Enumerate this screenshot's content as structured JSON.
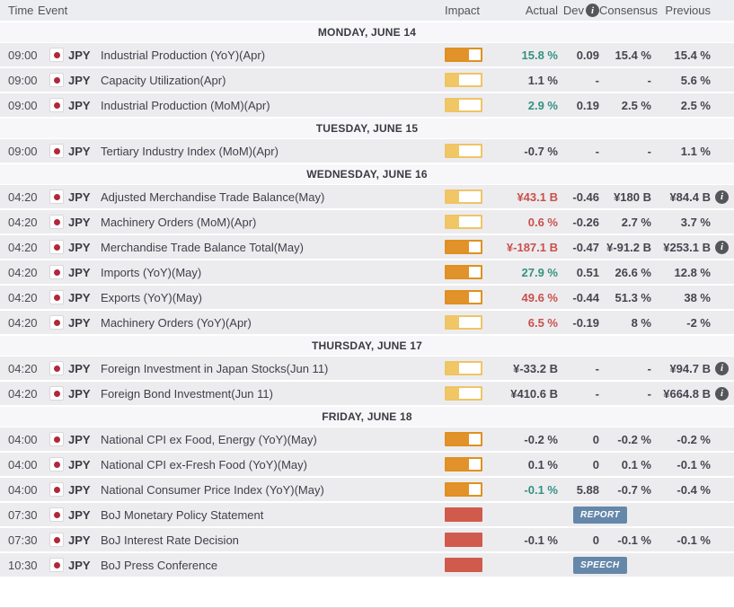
{
  "header": {
    "columns": {
      "time": "Time",
      "event": "Event",
      "impact": "Impact",
      "actual": "Actual",
      "dev": "Dev",
      "consensus": "Consensus",
      "previous": "Previous"
    },
    "dev_info_glyph": "i"
  },
  "icons": {
    "info_glyph": "i",
    "flag": "japan-flag"
  },
  "colors": {
    "impact_low": "#f1c766",
    "impact_medium": "#e2922a",
    "impact_high": "#d05b4c",
    "value_positive": "#359180",
    "value_negative": "#c9504b",
    "value_neutral": "#45454e",
    "badge_bg": "#6588aa",
    "row_bg": "#ececef",
    "day_band_bg": "#f7f7f9",
    "header_bg": "#ebedf0"
  },
  "sections": [
    {
      "date": "MONDAY, JUNE 14",
      "rows": [
        {
          "time": "09:00",
          "currency": "JPY",
          "event": "Industrial Production (YoY)(Apr)",
          "impact": "medium",
          "actual": "15.8 %",
          "actual_color": "positive",
          "dev": "0.09",
          "consensus": "15.4 %",
          "previous": "15.4 %",
          "prev_info": false
        },
        {
          "time": "09:00",
          "currency": "JPY",
          "event": "Capacity Utilization(Apr)",
          "impact": "low",
          "actual": "1.1 %",
          "actual_color": "neutral",
          "dev": "-",
          "consensus": "-",
          "previous": "5.6 %",
          "prev_info": false
        },
        {
          "time": "09:00",
          "currency": "JPY",
          "event": "Industrial Production (MoM)(Apr)",
          "impact": "low",
          "actual": "2.9 %",
          "actual_color": "positive",
          "dev": "0.19",
          "consensus": "2.5 %",
          "previous": "2.5 %",
          "prev_info": false
        }
      ]
    },
    {
      "date": "TUESDAY, JUNE 15",
      "rows": [
        {
          "time": "09:00",
          "currency": "JPY",
          "event": "Tertiary Industry Index (MoM)(Apr)",
          "impact": "low",
          "actual": "-0.7 %",
          "actual_color": "neutral",
          "dev": "-",
          "consensus": "-",
          "previous": "1.1 %",
          "prev_info": false
        }
      ]
    },
    {
      "date": "WEDNESDAY, JUNE 16",
      "rows": [
        {
          "time": "04:20",
          "currency": "JPY",
          "event": "Adjusted Merchandise Trade Balance(May)",
          "impact": "low",
          "actual": "¥43.1 B",
          "actual_color": "negative",
          "dev": "-0.46",
          "consensus": "¥180 B",
          "previous": "¥84.4 B",
          "prev_info": true
        },
        {
          "time": "04:20",
          "currency": "JPY",
          "event": "Machinery Orders (MoM)(Apr)",
          "impact": "low",
          "actual": "0.6 %",
          "actual_color": "negative",
          "dev": "-0.26",
          "consensus": "2.7 %",
          "previous": "3.7 %",
          "prev_info": false
        },
        {
          "time": "04:20",
          "currency": "JPY",
          "event": "Merchandise Trade Balance Total(May)",
          "impact": "medium",
          "actual": "¥-187.1 B",
          "actual_color": "negative",
          "dev": "-0.47",
          "consensus": "¥-91.2 B",
          "previous": "¥253.1 B",
          "prev_info": true
        },
        {
          "time": "04:20",
          "currency": "JPY",
          "event": "Imports (YoY)(May)",
          "impact": "medium",
          "actual": "27.9 %",
          "actual_color": "positive",
          "dev": "0.51",
          "consensus": "26.6 %",
          "previous": "12.8 %",
          "prev_info": false
        },
        {
          "time": "04:20",
          "currency": "JPY",
          "event": "Exports (YoY)(May)",
          "impact": "medium",
          "actual": "49.6 %",
          "actual_color": "negative",
          "dev": "-0.44",
          "consensus": "51.3 %",
          "previous": "38 %",
          "prev_info": false
        },
        {
          "time": "04:20",
          "currency": "JPY",
          "event": "Machinery Orders (YoY)(Apr)",
          "impact": "low",
          "actual": "6.5 %",
          "actual_color": "negative",
          "dev": "-0.19",
          "consensus": "8 %",
          "previous": "-2 %",
          "prev_info": false
        }
      ]
    },
    {
      "date": "THURSDAY, JUNE 17",
      "rows": [
        {
          "time": "04:20",
          "currency": "JPY",
          "event": "Foreign Investment in Japan Stocks(Jun 11)",
          "impact": "low",
          "actual": "¥-33.2 B",
          "actual_color": "neutral",
          "dev": "-",
          "consensus": "-",
          "previous": "¥94.7 B",
          "prev_info": true
        },
        {
          "time": "04:20",
          "currency": "JPY",
          "event": "Foreign Bond Investment(Jun 11)",
          "impact": "low",
          "actual": "¥410.6 B",
          "actual_color": "neutral",
          "dev": "-",
          "consensus": "-",
          "previous": "¥664.8 B",
          "prev_info": true
        }
      ]
    },
    {
      "date": "FRIDAY, JUNE 18",
      "rows": [
        {
          "time": "04:00",
          "currency": "JPY",
          "event": "National CPI ex Food, Energy (YoY)(May)",
          "impact": "medium",
          "actual": "-0.2 %",
          "actual_color": "neutral",
          "dev": "0",
          "consensus": "-0.2 %",
          "previous": "-0.2 %",
          "prev_info": false
        },
        {
          "time": "04:00",
          "currency": "JPY",
          "event": "National CPI ex-Fresh Food (YoY)(May)",
          "impact": "medium",
          "actual": "0.1 %",
          "actual_color": "neutral",
          "dev": "0",
          "consensus": "0.1 %",
          "previous": "-0.1 %",
          "prev_info": false
        },
        {
          "time": "04:00",
          "currency": "JPY",
          "event": "National Consumer Price Index (YoY)(May)",
          "impact": "medium",
          "actual": "-0.1 %",
          "actual_color": "positive",
          "dev": "5.88",
          "consensus": "-0.7 %",
          "previous": "-0.4 %",
          "prev_info": false
        },
        {
          "time": "07:30",
          "currency": "JPY",
          "event": "BoJ Monetary Policy Statement",
          "impact": "high",
          "badge": "REPORT"
        },
        {
          "time": "07:30",
          "currency": "JPY",
          "event": "BoJ Interest Rate Decision",
          "impact": "high",
          "actual": "-0.1 %",
          "actual_color": "neutral",
          "dev": "0",
          "consensus": "-0.1 %",
          "previous": "-0.1 %",
          "prev_info": false
        },
        {
          "time": "10:30",
          "currency": "JPY",
          "event": "BoJ Press Conference",
          "impact": "high",
          "badge": "SPEECH"
        }
      ]
    }
  ]
}
